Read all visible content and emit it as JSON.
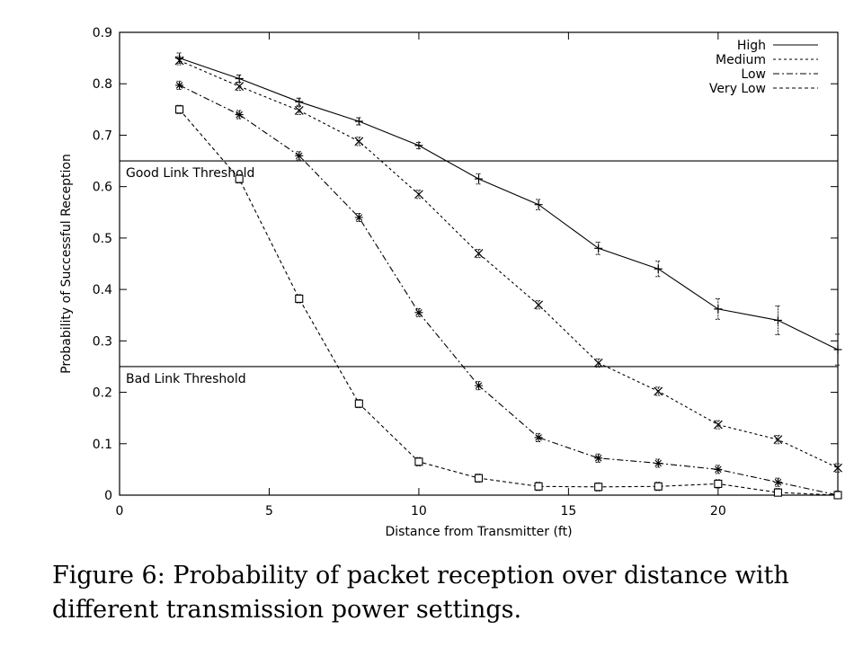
{
  "chart_data": {
    "type": "line",
    "title": "",
    "xlabel": "Distance from Transmitter (ft)",
    "ylabel": "Probability of Successful Reception",
    "xlim": [
      0,
      24
    ],
    "ylim": [
      0,
      0.9
    ],
    "x_ticks": [
      0,
      5,
      10,
      15,
      20
    ],
    "y_ticks": [
      0,
      0.1,
      0.2,
      0.3,
      0.4,
      0.5,
      0.6,
      0.7,
      0.8,
      0.9
    ],
    "grid": false,
    "legend_position": "top-right",
    "x": [
      2,
      4,
      6,
      8,
      10,
      12,
      14,
      16,
      18,
      20,
      22,
      24
    ],
    "series": [
      {
        "name": "High",
        "style": "solid",
        "marker": "plus",
        "values": [
          0.85,
          0.81,
          0.765,
          0.727,
          0.68,
          0.615,
          0.565,
          0.48,
          0.44,
          0.362,
          0.34,
          0.283
        ],
        "errors": [
          0.01,
          0.007,
          0.007,
          0.007,
          0.006,
          0.01,
          0.01,
          0.012,
          0.015,
          0.02,
          0.028,
          0.03
        ]
      },
      {
        "name": "Medium",
        "style": "dotted",
        "marker": "x",
        "values": [
          0.845,
          0.795,
          0.748,
          0.688,
          0.585,
          0.47,
          0.37,
          0.257,
          0.202,
          0.137,
          0.108,
          0.053
        ]
      },
      {
        "name": "Low",
        "style": "dashdot",
        "marker": "star",
        "values": [
          0.797,
          0.74,
          0.66,
          0.54,
          0.355,
          0.213,
          0.112,
          0.072,
          0.062,
          0.05,
          0.025,
          0.0
        ]
      },
      {
        "name": "Very Low",
        "style": "dashed",
        "marker": "square",
        "values": [
          0.75,
          0.615,
          0.382,
          0.178,
          0.065,
          0.033,
          0.017,
          0.016,
          0.017,
          0.022,
          0.005,
          0.0
        ]
      }
    ],
    "thresholds": [
      {
        "label": "Good Link Threshold",
        "y": 0.65
      },
      {
        "label": "Bad Link Threshold",
        "y": 0.25
      }
    ]
  },
  "caption": "Figure 6: Probability of packet reception over distance with different transmission power settings."
}
